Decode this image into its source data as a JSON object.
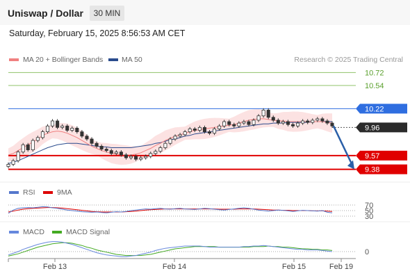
{
  "header": {
    "title": "Uniswap / Dollar",
    "interval": "30 MIN"
  },
  "datetime": "Saturday, February 15, 2025 8:56:53 AM CET",
  "credit": "Research © 2025 Trading Central",
  "legend": {
    "ma20": {
      "label": "MA 20 + Bollinger Bands",
      "color": "#f08080"
    },
    "ma50": {
      "label": "MA 50",
      "color": "#2a4b8d"
    },
    "rsi": {
      "label": "RSI",
      "color": "#5577cc"
    },
    "rsi_ma": {
      "label": "9MA",
      "color": "#dd0000"
    },
    "macd": {
      "label": "MACD",
      "color": "#6688dd"
    },
    "macd_signal": {
      "label": "MACD Signal",
      "color": "#44aa22"
    }
  },
  "chart_data": {
    "type": "candlestick",
    "x_ticks": [
      "Feb 13",
      "Feb 14",
      "Feb 15",
      "Feb 19"
    ],
    "price_range": [
      9.3,
      10.8
    ],
    "levels": [
      {
        "value": 10.72,
        "label": "10.72",
        "kind": "resistance-minor",
        "color": "#8fc36a"
      },
      {
        "value": 10.54,
        "label": "10.54",
        "kind": "resistance-minor",
        "color": "#8fc36a"
      },
      {
        "value": 10.22,
        "label": "10.22",
        "kind": "pivot",
        "color": "#2f6ee0"
      },
      {
        "value": 9.96,
        "label": "9.96",
        "kind": "last-price",
        "color": "#2b2b2b"
      },
      {
        "value": 9.57,
        "label": "9.57",
        "kind": "support",
        "color": "#e00000"
      },
      {
        "value": 9.38,
        "label": "9.38",
        "kind": "support",
        "color": "#e00000"
      }
    ],
    "closes": [
      9.45,
      9.5,
      9.62,
      9.72,
      9.65,
      9.78,
      9.82,
      9.9,
      9.98,
      10.05,
      9.96,
      9.98,
      9.92,
      9.95,
      9.9,
      9.84,
      9.8,
      9.74,
      9.7,
      9.66,
      9.64,
      9.6,
      9.62,
      9.58,
      9.54,
      9.56,
      9.52,
      9.54,
      9.56,
      9.6,
      9.63,
      9.68,
      9.74,
      9.8,
      9.84,
      9.86,
      9.9,
      9.94,
      9.92,
      9.96,
      9.9,
      9.88,
      9.94,
      9.98,
      10.04,
      10.0,
      9.98,
      10.02,
      10.04,
      10.0,
      10.06,
      10.12,
      10.2,
      10.1,
      10.06,
      10.02,
      10.04,
      10.0,
      9.98,
      10.02,
      10.05,
      10.03,
      10.06,
      10.08,
      10.05,
      10.02,
      9.98
    ],
    "ma20": [
      9.58,
      9.6,
      9.64,
      9.68,
      9.72,
      9.76,
      9.8,
      9.85,
      9.88,
      9.9,
      9.91,
      9.9,
      9.88,
      9.85,
      9.82,
      9.78,
      9.74,
      9.7,
      9.67,
      9.64,
      9.62,
      9.6,
      9.59,
      9.58,
      9.58,
      9.58,
      9.59,
      9.61,
      9.64,
      9.67,
      9.71,
      9.74,
      9.78,
      9.81,
      9.84,
      9.86,
      9.88,
      9.9,
      9.92,
      9.93,
      9.94,
      9.95,
      9.96,
      9.97,
      9.98,
      9.99,
      10.0,
      10.02,
      10.04,
      10.06,
      10.07,
      10.08,
      10.08,
      10.07,
      10.06,
      10.05,
      10.05,
      10.04,
      10.04,
      10.04,
      10.04,
      10.04,
      10.04,
      10.04,
      10.04,
      10.03,
      10.02
    ],
    "ma50": [
      9.46,
      9.48,
      9.5,
      9.53,
      9.56,
      9.59,
      9.62,
      9.65,
      9.68,
      9.7,
      9.72,
      9.73,
      9.74,
      9.74,
      9.74,
      9.73,
      9.72,
      9.71,
      9.7,
      9.69,
      9.69,
      9.68,
      9.68,
      9.68,
      9.68,
      9.68,
      9.69,
      9.7,
      9.71,
      9.72,
      9.74,
      9.75,
      9.77,
      9.79,
      9.8,
      9.82,
      9.84,
      9.85,
      9.87,
      9.88,
      9.89,
      9.9,
      9.91,
      9.92,
      9.93,
      9.94,
      9.95,
      9.96,
      9.97,
      9.98,
      9.99,
      10.0,
      10.01,
      10.01,
      10.02,
      10.02,
      10.02,
      10.03,
      10.03,
      10.03,
      10.03,
      10.03,
      10.04,
      10.04,
      10.04,
      10.04,
      10.04
    ],
    "projection": {
      "from": 9.98,
      "to": 9.38
    },
    "rsi": {
      "levels": [
        70,
        50,
        30
      ],
      "values": [
        40,
        52,
        58,
        60,
        61,
        60,
        62,
        64,
        63,
        60,
        58,
        55,
        52,
        50,
        48,
        46,
        45,
        44,
        45,
        43,
        42,
        44,
        46,
        45,
        47,
        50,
        52,
        54,
        56,
        55,
        57,
        58,
        56,
        55,
        57,
        58,
        56,
        55,
        54,
        56,
        58,
        57,
        55,
        53,
        52,
        54,
        56,
        58,
        60,
        58,
        55,
        52,
        50,
        48,
        50,
        52,
        51,
        49,
        47,
        49,
        51,
        50,
        49,
        48,
        50,
        44,
        42
      ],
      "ma": [
        45,
        48,
        52,
        55,
        57,
        58,
        59,
        60,
        61,
        61,
        60,
        59,
        57,
        55,
        53,
        51,
        49,
        47,
        46,
        45,
        45,
        45,
        45,
        45,
        46,
        47,
        48,
        50,
        52,
        53,
        54,
        55,
        56,
        56,
        56,
        56,
        56,
        56,
        56,
        56,
        56,
        56,
        56,
        55,
        55,
        55,
        55,
        56,
        56,
        56,
        56,
        55,
        54,
        53,
        52,
        52,
        51,
        51,
        50,
        50,
        50,
        50,
        49,
        49,
        49,
        48,
        47
      ]
    },
    "macd": {
      "levels": [
        0
      ],
      "values": [
        -0.06,
        -0.03,
        0.0,
        0.04,
        0.07,
        0.1,
        0.13,
        0.15,
        0.17,
        0.18,
        0.18,
        0.17,
        0.15,
        0.13,
        0.1,
        0.07,
        0.04,
        0.01,
        -0.02,
        -0.04,
        -0.06,
        -0.07,
        -0.08,
        -0.09,
        -0.09,
        -0.08,
        -0.07,
        -0.05,
        -0.03,
        -0.01,
        0.02,
        0.04,
        0.06,
        0.07,
        0.08,
        0.09,
        0.1,
        0.1,
        0.1,
        0.1,
        0.09,
        0.08,
        0.08,
        0.08,
        0.08,
        0.08,
        0.08,
        0.08,
        0.09,
        0.09,
        0.1,
        0.1,
        0.11,
        0.1,
        0.09,
        0.08,
        0.07,
        0.06,
        0.05,
        0.04,
        0.04,
        0.03,
        0.03,
        0.03,
        0.02,
        0.01,
        0.0
      ],
      "signal": [
        -0.08,
        -0.06,
        -0.04,
        -0.01,
        0.02,
        0.05,
        0.08,
        0.1,
        0.12,
        0.14,
        0.15,
        0.16,
        0.16,
        0.15,
        0.13,
        0.11,
        0.08,
        0.06,
        0.03,
        0.01,
        -0.01,
        -0.03,
        -0.05,
        -0.06,
        -0.07,
        -0.07,
        -0.07,
        -0.07,
        -0.06,
        -0.05,
        -0.03,
        -0.01,
        0.01,
        0.03,
        0.05,
        0.06,
        0.07,
        0.08,
        0.09,
        0.09,
        0.09,
        0.09,
        0.09,
        0.08,
        0.08,
        0.08,
        0.08,
        0.08,
        0.08,
        0.08,
        0.09,
        0.09,
        0.09,
        0.1,
        0.09,
        0.09,
        0.08,
        0.08,
        0.07,
        0.06,
        0.05,
        0.05,
        0.04,
        0.04,
        0.03,
        0.03,
        0.02
      ]
    }
  }
}
